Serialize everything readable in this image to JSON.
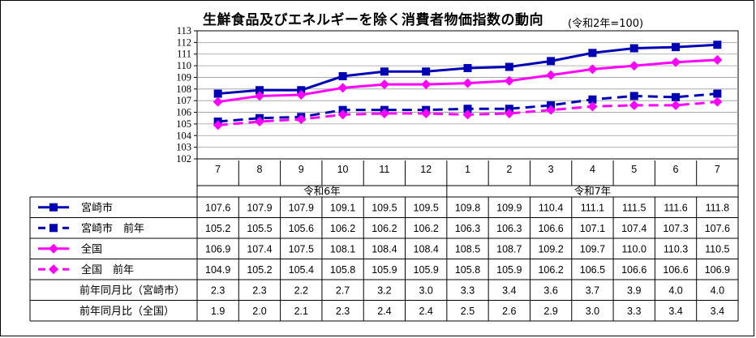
{
  "title": "生鮮食品及びエネルギーを除く消費者物価指数の動向",
  "subtitle": "(令和2年=100)",
  "chart_data": {
    "type": "line",
    "categories": [
      "7",
      "8",
      "9",
      "10",
      "11",
      "12",
      "1",
      "2",
      "3",
      "4",
      "5",
      "6",
      "7"
    ],
    "era_labels": [
      {
        "label": "令和6年",
        "span": [
          0,
          5
        ]
      },
      {
        "label": "令和7年",
        "span": [
          6,
          12
        ]
      }
    ],
    "ylim": [
      102,
      113
    ],
    "yticks": [
      102,
      103,
      104,
      105,
      106,
      107,
      108,
      109,
      110,
      111,
      112,
      113
    ],
    "grid": true,
    "series": [
      {
        "name": "宮崎市",
        "color": "#0000b4",
        "marker": "square",
        "dashed": false,
        "values": [
          107.6,
          107.9,
          107.9,
          109.1,
          109.5,
          109.5,
          109.8,
          109.9,
          110.4,
          111.1,
          111.5,
          111.6,
          111.8
        ]
      },
      {
        "name": "宮崎市　前年",
        "color": "#0000b4",
        "marker": "square",
        "dashed": true,
        "values": [
          105.2,
          105.5,
          105.6,
          106.2,
          106.2,
          106.2,
          106.3,
          106.3,
          106.6,
          107.1,
          107.4,
          107.3,
          107.6
        ]
      },
      {
        "name": "全国",
        "color": "#ff00ff",
        "marker": "diamond",
        "dashed": false,
        "values": [
          106.9,
          107.4,
          107.5,
          108.1,
          108.4,
          108.4,
          108.5,
          108.7,
          109.2,
          109.7,
          110.0,
          110.3,
          110.5
        ]
      },
      {
        "name": "全国　前年",
        "color": "#ff00ff",
        "marker": "diamond",
        "dashed": true,
        "values": [
          104.9,
          105.2,
          105.4,
          105.8,
          105.9,
          105.9,
          105.8,
          105.9,
          106.2,
          106.5,
          106.6,
          106.6,
          106.9
        ]
      }
    ],
    "extra_rows": [
      {
        "name": "前年同月比（宮崎市）",
        "values": [
          "2.3",
          "2.3",
          "2.2",
          "2.7",
          "3.2",
          "3.0",
          "3.3",
          "3.4",
          "3.6",
          "3.7",
          "3.9",
          "4.0",
          "4.0"
        ]
      },
      {
        "name": "前年同月比（全国）",
        "values": [
          "1.9",
          "2.0",
          "2.1",
          "2.3",
          "2.4",
          "2.4",
          "2.5",
          "2.6",
          "2.9",
          "3.0",
          "3.3",
          "3.4",
          "3.4"
        ]
      }
    ]
  }
}
